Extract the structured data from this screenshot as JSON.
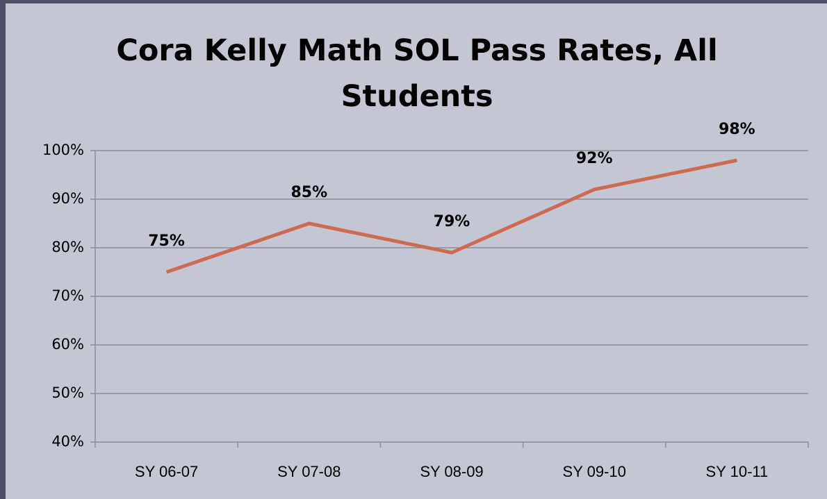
{
  "chart_data": {
    "type": "line",
    "title": "Cora Kelly Math SOL Pass Rates, All Students",
    "categories": [
      "SY 06-07",
      "SY 07-08",
      "SY 08-09",
      "SY 09-10",
      "SY 10-11"
    ],
    "values": [
      75,
      85,
      79,
      92,
      98
    ],
    "value_labels": [
      "75%",
      "85%",
      "79%",
      "92%",
      "98%"
    ],
    "color": "#d0694e",
    "ylim": [
      40,
      100
    ],
    "yticks": [
      {
        "value": 40,
        "label": "40%"
      },
      {
        "value": 50,
        "label": "50%"
      },
      {
        "value": 60,
        "label": "60%"
      },
      {
        "value": 70,
        "label": "70%"
      },
      {
        "value": 80,
        "label": "80%"
      },
      {
        "value": 90,
        "label": "90%"
      },
      {
        "value": 100,
        "label": "100%"
      }
    ],
    "grid": true
  }
}
